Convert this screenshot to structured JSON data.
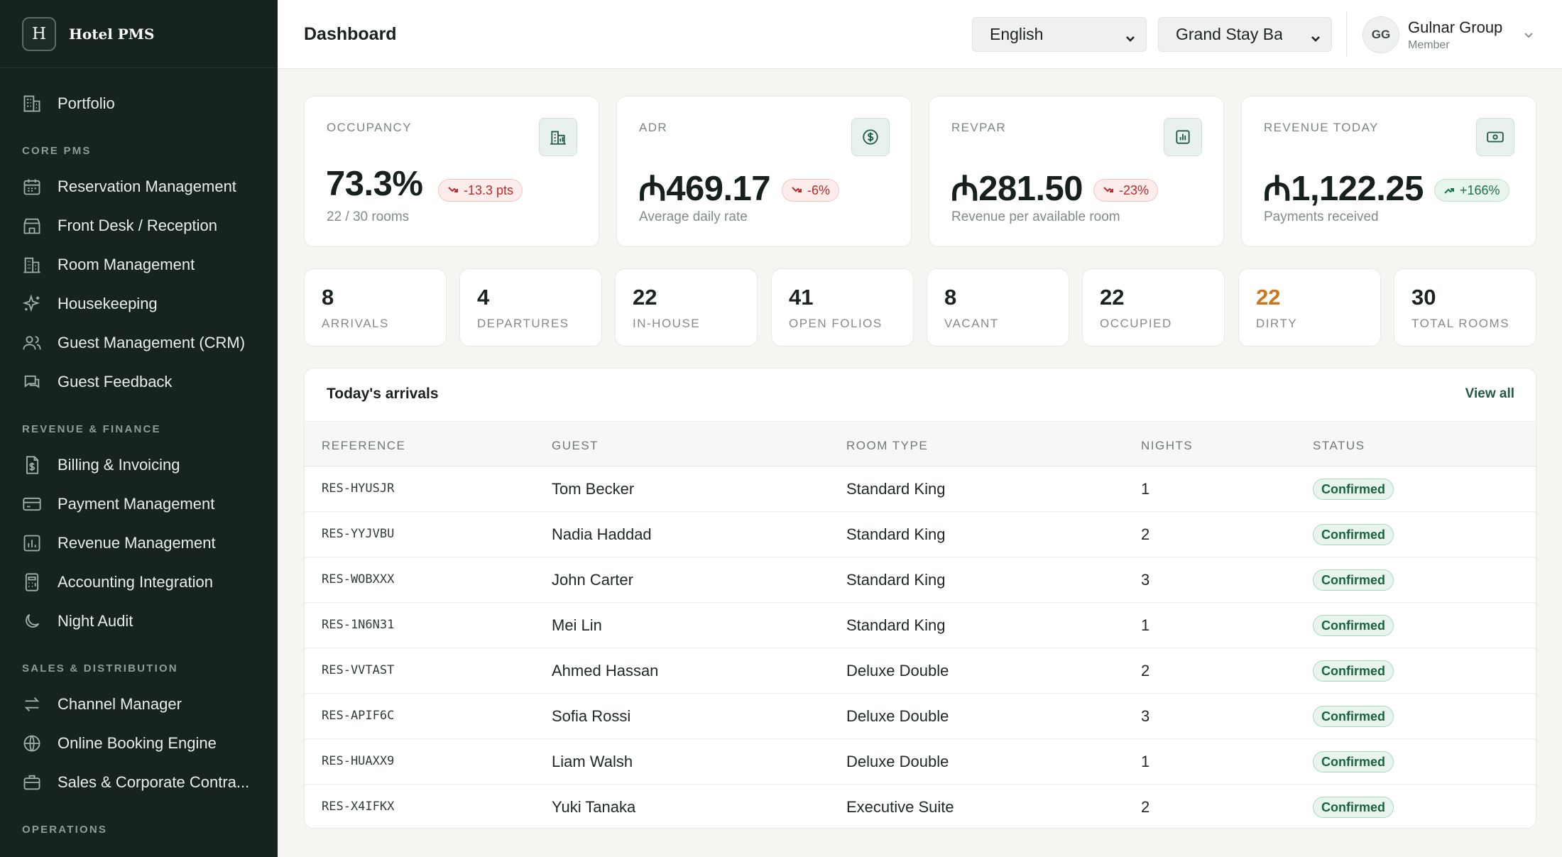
{
  "brand": {
    "mark": "H",
    "name": "Hotel PMS"
  },
  "sidebar": {
    "portfolio": {
      "label": "Portfolio",
      "icon": "building-icon"
    },
    "sections": [
      {
        "title": "CORE PMS",
        "items": [
          {
            "label": "Reservation Management",
            "icon": "calendar-icon"
          },
          {
            "label": "Front Desk / Reception",
            "icon": "store-icon"
          },
          {
            "label": "Room Management",
            "icon": "hotel-icon"
          },
          {
            "label": "Housekeeping",
            "icon": "sparkles-icon"
          },
          {
            "label": "Guest Management (CRM)",
            "icon": "users-icon"
          },
          {
            "label": "Guest Feedback",
            "icon": "chat-icon"
          }
        ]
      },
      {
        "title": "REVENUE & FINANCE",
        "items": [
          {
            "label": "Billing & Invoicing",
            "icon": "invoice-icon"
          },
          {
            "label": "Payment Management",
            "icon": "credit-card-icon"
          },
          {
            "label": "Revenue Management",
            "icon": "bar-chart-icon"
          },
          {
            "label": "Accounting Integration",
            "icon": "calculator-icon"
          },
          {
            "label": "Night Audit",
            "icon": "moon-icon"
          }
        ]
      },
      {
        "title": "SALES & DISTRIBUTION",
        "items": [
          {
            "label": "Channel Manager",
            "icon": "arrows-exchange-icon"
          },
          {
            "label": "Online Booking Engine",
            "icon": "globe-icon"
          },
          {
            "label": "Sales & Corporate Contra...",
            "icon": "briefcase-icon"
          }
        ]
      },
      {
        "title": "OPERATIONS",
        "items": []
      }
    ]
  },
  "header": {
    "title": "Dashboard",
    "language": "English",
    "property": "Grand Stay Bal",
    "user": {
      "initials": "GG",
      "name": "Gulnar Group",
      "role": "Member"
    }
  },
  "kpis": [
    {
      "label": "OCCUPANCY",
      "value": "73.3%",
      "delta": "-13.3 pts",
      "trend": "down",
      "sub": "22 / 30 rooms",
      "icon": "building-chart-icon"
    },
    {
      "label": "ADR",
      "value": "₼469.17",
      "delta": "-6%",
      "trend": "down",
      "sub": "Average daily rate",
      "icon": "dollar-circle-icon"
    },
    {
      "label": "REVPAR",
      "value": "₼281.50",
      "delta": "-23%",
      "trend": "down",
      "sub": "Revenue per available room",
      "icon": "bar-chart-square-icon"
    },
    {
      "label": "REVENUE TODAY",
      "value": "₼1,122.25",
      "delta": "+166%",
      "trend": "up",
      "sub": "Payments received",
      "icon": "banknote-icon"
    }
  ],
  "stats": [
    {
      "value": "8",
      "label": "ARRIVALS"
    },
    {
      "value": "4",
      "label": "DEPARTURES"
    },
    {
      "value": "22",
      "label": "IN-HOUSE"
    },
    {
      "value": "41",
      "label": "OPEN FOLIOS"
    },
    {
      "value": "8",
      "label": "VACANT"
    },
    {
      "value": "22",
      "label": "OCCUPIED"
    },
    {
      "value": "22",
      "label": "DIRTY",
      "highlight": "#c9771a"
    },
    {
      "value": "30",
      "label": "TOTAL ROOMS"
    }
  ],
  "arrivals": {
    "title": "Today's arrivals",
    "view_all": "View all",
    "columns": [
      "REFERENCE",
      "GUEST",
      "ROOM TYPE",
      "NIGHTS",
      "STATUS"
    ],
    "rows": [
      {
        "ref": "RES-HYUSJR",
        "guest": "Tom Becker",
        "room": "Standard King",
        "nights": "1",
        "status": "Confirmed"
      },
      {
        "ref": "RES-YYJVBU",
        "guest": "Nadia Haddad",
        "room": "Standard King",
        "nights": "2",
        "status": "Confirmed"
      },
      {
        "ref": "RES-WOBXXX",
        "guest": "John Carter",
        "room": "Standard King",
        "nights": "3",
        "status": "Confirmed"
      },
      {
        "ref": "RES-1N6N31",
        "guest": "Mei Lin",
        "room": "Standard King",
        "nights": "1",
        "status": "Confirmed"
      },
      {
        "ref": "RES-VVTAST",
        "guest": "Ahmed Hassan",
        "room": "Deluxe Double",
        "nights": "2",
        "status": "Confirmed"
      },
      {
        "ref": "RES-APIF6C",
        "guest": "Sofia Rossi",
        "room": "Deluxe Double",
        "nights": "3",
        "status": "Confirmed"
      },
      {
        "ref": "RES-HUAXX9",
        "guest": "Liam Walsh",
        "room": "Deluxe Double",
        "nights": "1",
        "status": "Confirmed"
      },
      {
        "ref": "RES-X4IFKX",
        "guest": "Yuki Tanaka",
        "room": "Executive Suite",
        "nights": "2",
        "status": "Confirmed"
      }
    ]
  },
  "colors": {
    "sidebar_bg": "#17231f",
    "accent": "#1f5b45",
    "negative": "#b62b2b",
    "positive": "#187446",
    "warning": "#c9771a"
  }
}
